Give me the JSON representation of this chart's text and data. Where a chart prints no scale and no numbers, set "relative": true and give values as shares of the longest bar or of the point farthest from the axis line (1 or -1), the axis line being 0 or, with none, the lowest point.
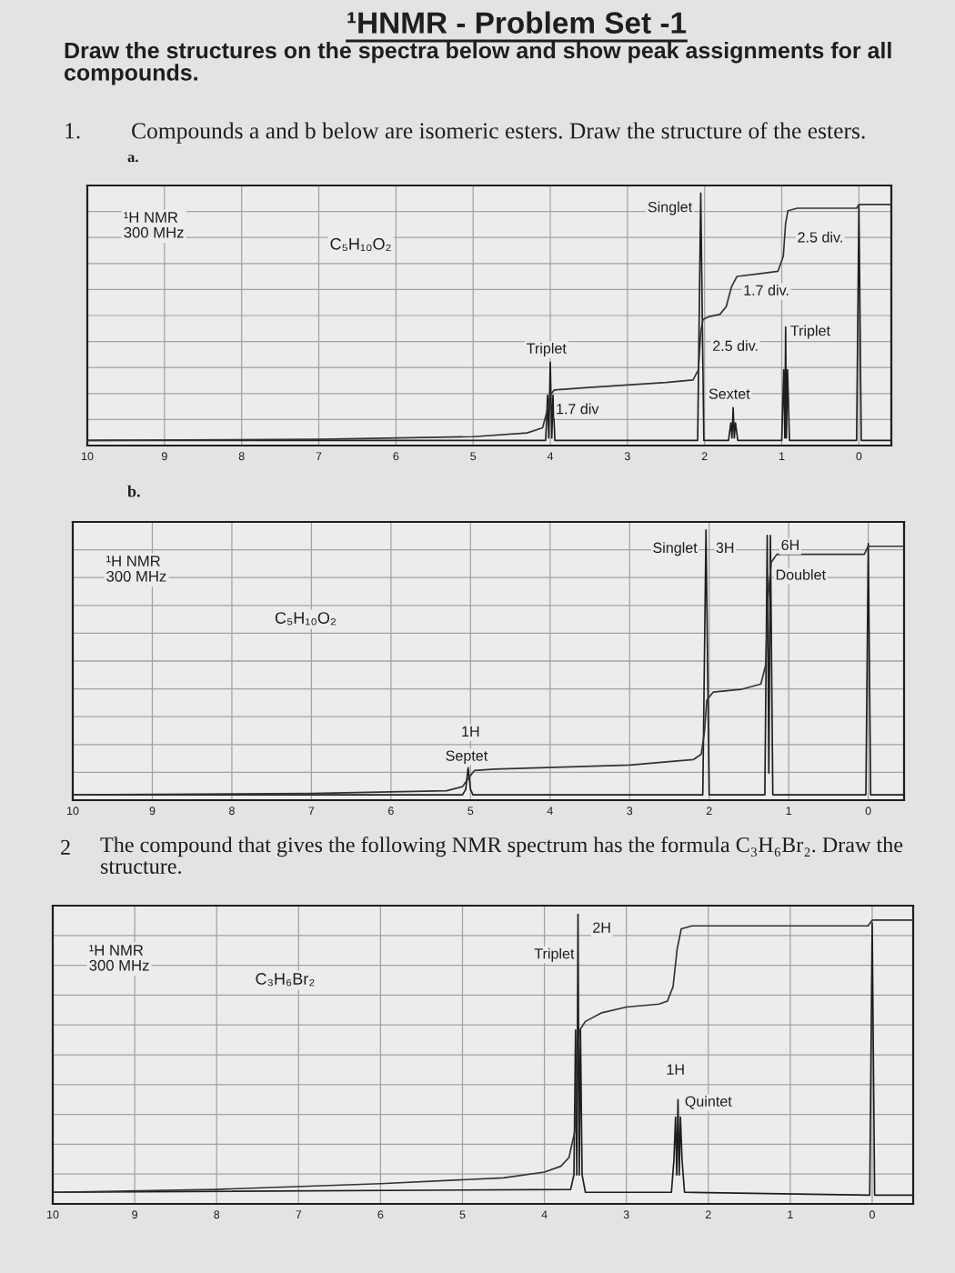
{
  "chart_data": [
    {
      "type": "line",
      "relative": true,
      "title": "¹HNMR - Problem Set -1",
      "subtitle": "Draw the structures on the spectra below and show peak assignments for all compounds.",
      "xlim": [
        10,
        -0.42
      ],
      "xticks": [
        10,
        9,
        8,
        7,
        6,
        5,
        4,
        3,
        2,
        1,
        0
      ],
      "grid": true,
      "series": [
        {
          "color": "#1e1e1e",
          "x": [
            10,
            4.06,
            4.035,
            4.02,
            4.0,
            3.98,
            3.965,
            3.94,
            2.09,
            2.05,
            2.01,
            1.69,
            1.66,
            1.645,
            1.63,
            1.615,
            1.6,
            1.57,
            1.0,
            0.975,
            0.96,
            0.95,
            0.94,
            0.925,
            0.9,
            0.03,
            0.0,
            -0.03,
            -0.42
          ],
          "values": [
            0.02,
            0.02,
            0.2,
            0.03,
            0.33,
            0.03,
            0.2,
            0.02,
            0.02,
            1.0,
            0.02,
            0.02,
            0.09,
            0.03,
            0.15,
            0.03,
            0.09,
            0.02,
            0.02,
            0.3,
            0.03,
            0.47,
            0.03,
            0.3,
            0.02,
            0.02,
            0.95,
            0.02,
            0.02
          ]
        },
        {
          "color": "#333333",
          "x": [
            10,
            7,
            5,
            4.3,
            4.1,
            4.03,
            4.0,
            3.95,
            3.5,
            2.5,
            2.15,
            2.08,
            2.05,
            2.02,
            1.95,
            1.8,
            1.72,
            1.65,
            1.58,
            1.3,
            1.05,
            0.98,
            0.95,
            0.92,
            0.8,
            0.03,
            0.0,
            -0.42
          ],
          "values": [
            0.02,
            0.025,
            0.035,
            0.05,
            0.07,
            0.15,
            0.2,
            0.22,
            0.23,
            0.25,
            0.26,
            0.3,
            0.45,
            0.5,
            0.51,
            0.52,
            0.55,
            0.63,
            0.67,
            0.68,
            0.69,
            0.75,
            0.88,
            0.93,
            0.94,
            0.94,
            0.955,
            0.955
          ]
        }
      ],
      "annotations": [
        "1.",
        "Compounds a and b below are isomeric esters. Draw the structure of the esters.",
        "a.",
        "¹H NMR\n300 MHz",
        "C₅H₁₀O₂",
        {
          "text": "Singlet",
          "x": 2.45,
          "y": 0.94
        },
        {
          "text": "Triplet",
          "x": 4.05,
          "y": 0.38
        },
        {
          "text": "1.7 div",
          "x": 3.65,
          "y": 0.14
        },
        {
          "text": "2.5 div.",
          "x": 1.6,
          "y": 0.39
        },
        {
          "text": "Sextet",
          "x": 1.68,
          "y": 0.2
        },
        {
          "text": "1.7 div.",
          "x": 1.2,
          "y": 0.61
        },
        {
          "text": "2.5 div.",
          "x": 0.5,
          "y": 0.82
        },
        {
          "text": "Triplet",
          "x": 0.63,
          "y": 0.45
        }
      ]
    },
    {
      "type": "line",
      "relative": true,
      "xlim": [
        10,
        -0.45
      ],
      "xticks": [
        10,
        9,
        8,
        7,
        6,
        5,
        4,
        3,
        2,
        1,
        0
      ],
      "grid": true,
      "series": [
        {
          "color": "#1e1e1e",
          "x": [
            10,
            5.1,
            5.06,
            5.03,
            5.0,
            4.97,
            2.08,
            2.04,
            2.0,
            1.3,
            1.27,
            1.25,
            1.23,
            1.2,
            0.03,
            0.0,
            -0.03,
            -0.45
          ],
          "values": [
            0.02,
            0.02,
            0.04,
            0.12,
            0.04,
            0.02,
            0.02,
            1.0,
            0.02,
            0.02,
            0.98,
            0.1,
            0.98,
            0.02,
            0.02,
            0.95,
            0.02,
            0.02
          ]
        },
        {
          "color": "#333333",
          "x": [
            10,
            7,
            5.3,
            5.1,
            5.03,
            4.95,
            4.7,
            3,
            2.2,
            2.1,
            2.06,
            2.03,
            1.95,
            1.6,
            1.35,
            1.29,
            1.26,
            1.22,
            1.15,
            0.05,
            0.0,
            -0.45
          ],
          "values": [
            0.02,
            0.025,
            0.035,
            0.05,
            0.08,
            0.11,
            0.115,
            0.13,
            0.15,
            0.17,
            0.25,
            0.37,
            0.4,
            0.41,
            0.43,
            0.5,
            0.75,
            0.88,
            0.91,
            0.91,
            0.94,
            0.94
          ]
        }
      ],
      "annotations": [
        "b.",
        "¹H NMR\n300 MHz",
        "C₅H₁₀O₂",
        {
          "text": "Singlet",
          "x": 2.43,
          "y": 0.93
        },
        {
          "text": "3H",
          "x": 1.8,
          "y": 0.93
        },
        {
          "text": "6H",
          "x": 0.98,
          "y": 0.94
        },
        {
          "text": "Doublet",
          "x": 0.85,
          "y": 0.83
        },
        {
          "text": "1H",
          "x": 5.0,
          "y": 0.25
        },
        {
          "text": "Septet",
          "x": 5.05,
          "y": 0.16
        }
      ]
    },
    {
      "type": "line",
      "relative": true,
      "xlim": [
        10,
        -0.5
      ],
      "xticks": [
        10,
        9,
        8,
        7,
        6,
        5,
        4,
        3,
        2,
        1,
        0
      ],
      "grid": true,
      "series": [
        {
          "color": "#1e1e1e",
          "x": [
            10,
            3.68,
            3.64,
            3.62,
            3.605,
            3.59,
            3.575,
            3.56,
            3.54,
            3.5,
            2.45,
            2.42,
            2.4,
            2.385,
            2.37,
            2.355,
            2.34,
            2.32,
            2.29,
            0.03,
            0.0,
            -0.03,
            -0.5
          ],
          "values": [
            0.04,
            0.05,
            0.1,
            0.6,
            0.1,
            1.0,
            0.1,
            0.6,
            0.1,
            0.04,
            0.04,
            0.15,
            0.3,
            0.1,
            0.36,
            0.1,
            0.3,
            0.15,
            0.04,
            0.03,
            0.97,
            0.03,
            0.03
          ]
        },
        {
          "color": "#333333",
          "x": [
            10,
            8,
            6,
            4.5,
            4.0,
            3.8,
            3.7,
            3.63,
            3.6,
            3.57,
            3.5,
            3.3,
            3.0,
            2.6,
            2.5,
            2.43,
            2.38,
            2.33,
            2.2,
            0.05,
            0.0,
            -0.5
          ],
          "values": [
            0.04,
            0.05,
            0.07,
            0.09,
            0.11,
            0.13,
            0.16,
            0.25,
            0.5,
            0.6,
            0.63,
            0.66,
            0.68,
            0.69,
            0.7,
            0.75,
            0.88,
            0.95,
            0.96,
            0.96,
            0.98,
            0.98
          ]
        }
      ],
      "annotations": [
        "2",
        "The compound that gives the following NMR spectrum has the formula C₃H₆Br₂. Draw the structure.",
        "¹H NMR\n300 MHz",
        "C₃H₆Br₂",
        {
          "text": "2H",
          "x": 3.3,
          "y": 0.95
        },
        {
          "text": "Triplet",
          "x": 3.88,
          "y": 0.86
        },
        {
          "text": "1H",
          "x": 2.4,
          "y": 0.46
        },
        {
          "text": "Quintet",
          "x": 2.0,
          "y": 0.35
        }
      ]
    }
  ]
}
